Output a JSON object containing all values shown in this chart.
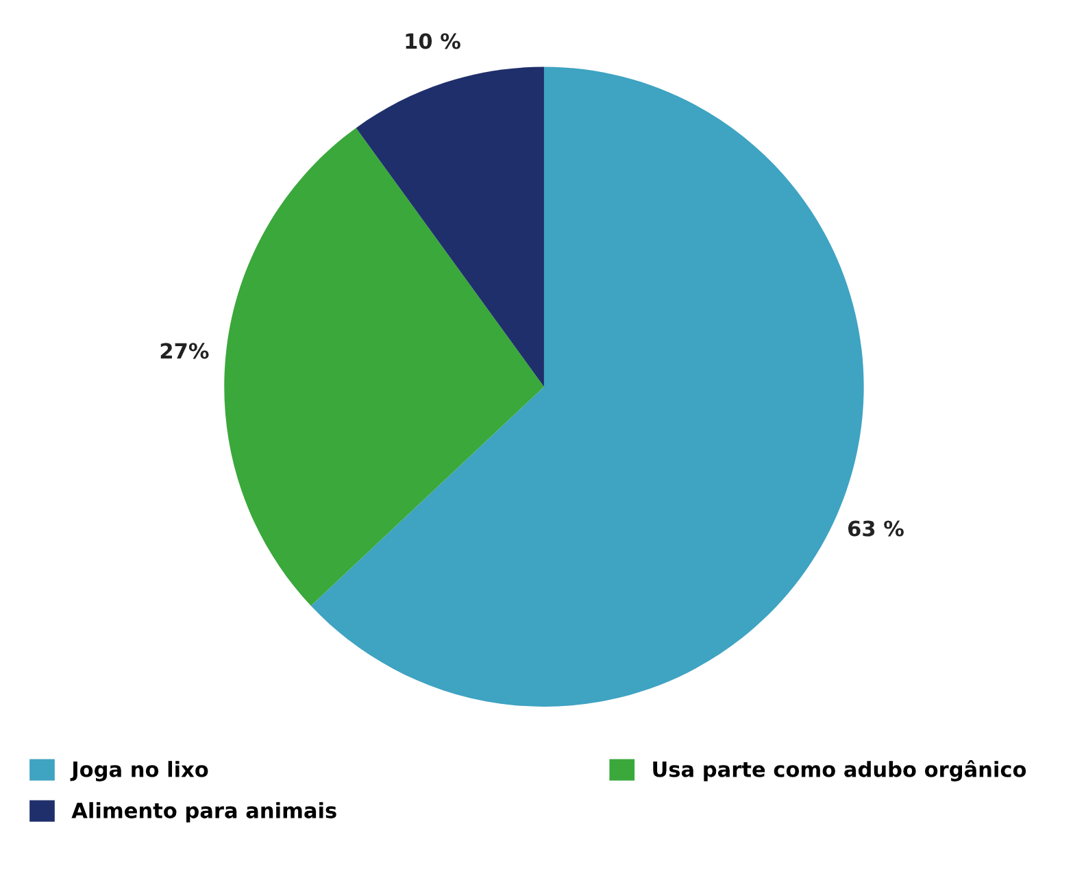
{
  "chart_data": {
    "type": "pie",
    "categories": [
      "Joga no lixo",
      "Usa parte como adubo orgânico",
      "Alimento para animais"
    ],
    "values": [
      63,
      27,
      10
    ],
    "value_labels": [
      "63 %",
      "27%",
      "10 %"
    ],
    "colors": [
      "#3fa3c2",
      "#3aa83a",
      "#1f2f6b"
    ],
    "legend": "bottom"
  }
}
